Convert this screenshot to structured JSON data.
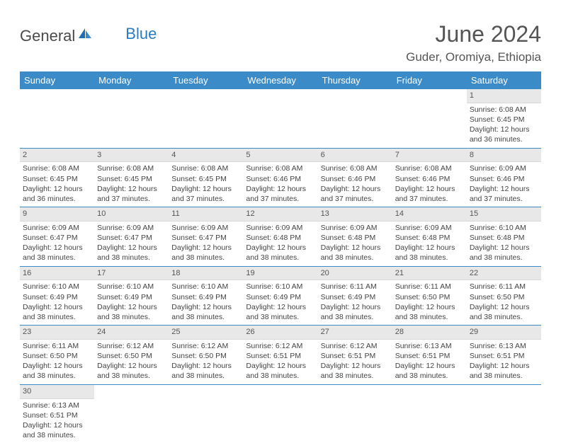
{
  "logo": {
    "text1": "General",
    "text2": "Blue"
  },
  "title": "June 2024",
  "location": "Guder, Oromiya, Ethiopia",
  "colors": {
    "header_bg": "#3b8bc9",
    "header_text": "#ffffff",
    "day_header_bg": "#e8e8e8",
    "cell_border": "#3b8bc9",
    "title_color": "#555555",
    "logo_gray": "#4a4a4a",
    "logo_blue": "#2b7bbf"
  },
  "weekdays": [
    "Sunday",
    "Monday",
    "Tuesday",
    "Wednesday",
    "Thursday",
    "Friday",
    "Saturday"
  ],
  "weeks": [
    [
      {
        "empty": true
      },
      {
        "empty": true
      },
      {
        "empty": true
      },
      {
        "empty": true
      },
      {
        "empty": true
      },
      {
        "empty": true
      },
      {
        "day": "1",
        "sunrise": "Sunrise: 6:08 AM",
        "sunset": "Sunset: 6:45 PM",
        "daylight1": "Daylight: 12 hours",
        "daylight2": "and 36 minutes."
      }
    ],
    [
      {
        "day": "2",
        "sunrise": "Sunrise: 6:08 AM",
        "sunset": "Sunset: 6:45 PM",
        "daylight1": "Daylight: 12 hours",
        "daylight2": "and 36 minutes."
      },
      {
        "day": "3",
        "sunrise": "Sunrise: 6:08 AM",
        "sunset": "Sunset: 6:45 PM",
        "daylight1": "Daylight: 12 hours",
        "daylight2": "and 37 minutes."
      },
      {
        "day": "4",
        "sunrise": "Sunrise: 6:08 AM",
        "sunset": "Sunset: 6:45 PM",
        "daylight1": "Daylight: 12 hours",
        "daylight2": "and 37 minutes."
      },
      {
        "day": "5",
        "sunrise": "Sunrise: 6:08 AM",
        "sunset": "Sunset: 6:46 PM",
        "daylight1": "Daylight: 12 hours",
        "daylight2": "and 37 minutes."
      },
      {
        "day": "6",
        "sunrise": "Sunrise: 6:08 AM",
        "sunset": "Sunset: 6:46 PM",
        "daylight1": "Daylight: 12 hours",
        "daylight2": "and 37 minutes."
      },
      {
        "day": "7",
        "sunrise": "Sunrise: 6:08 AM",
        "sunset": "Sunset: 6:46 PM",
        "daylight1": "Daylight: 12 hours",
        "daylight2": "and 37 minutes."
      },
      {
        "day": "8",
        "sunrise": "Sunrise: 6:09 AM",
        "sunset": "Sunset: 6:46 PM",
        "daylight1": "Daylight: 12 hours",
        "daylight2": "and 37 minutes."
      }
    ],
    [
      {
        "day": "9",
        "sunrise": "Sunrise: 6:09 AM",
        "sunset": "Sunset: 6:47 PM",
        "daylight1": "Daylight: 12 hours",
        "daylight2": "and 38 minutes."
      },
      {
        "day": "10",
        "sunrise": "Sunrise: 6:09 AM",
        "sunset": "Sunset: 6:47 PM",
        "daylight1": "Daylight: 12 hours",
        "daylight2": "and 38 minutes."
      },
      {
        "day": "11",
        "sunrise": "Sunrise: 6:09 AM",
        "sunset": "Sunset: 6:47 PM",
        "daylight1": "Daylight: 12 hours",
        "daylight2": "and 38 minutes."
      },
      {
        "day": "12",
        "sunrise": "Sunrise: 6:09 AM",
        "sunset": "Sunset: 6:48 PM",
        "daylight1": "Daylight: 12 hours",
        "daylight2": "and 38 minutes."
      },
      {
        "day": "13",
        "sunrise": "Sunrise: 6:09 AM",
        "sunset": "Sunset: 6:48 PM",
        "daylight1": "Daylight: 12 hours",
        "daylight2": "and 38 minutes."
      },
      {
        "day": "14",
        "sunrise": "Sunrise: 6:09 AM",
        "sunset": "Sunset: 6:48 PM",
        "daylight1": "Daylight: 12 hours",
        "daylight2": "and 38 minutes."
      },
      {
        "day": "15",
        "sunrise": "Sunrise: 6:10 AM",
        "sunset": "Sunset: 6:48 PM",
        "daylight1": "Daylight: 12 hours",
        "daylight2": "and 38 minutes."
      }
    ],
    [
      {
        "day": "16",
        "sunrise": "Sunrise: 6:10 AM",
        "sunset": "Sunset: 6:49 PM",
        "daylight1": "Daylight: 12 hours",
        "daylight2": "and 38 minutes."
      },
      {
        "day": "17",
        "sunrise": "Sunrise: 6:10 AM",
        "sunset": "Sunset: 6:49 PM",
        "daylight1": "Daylight: 12 hours",
        "daylight2": "and 38 minutes."
      },
      {
        "day": "18",
        "sunrise": "Sunrise: 6:10 AM",
        "sunset": "Sunset: 6:49 PM",
        "daylight1": "Daylight: 12 hours",
        "daylight2": "and 38 minutes."
      },
      {
        "day": "19",
        "sunrise": "Sunrise: 6:10 AM",
        "sunset": "Sunset: 6:49 PM",
        "daylight1": "Daylight: 12 hours",
        "daylight2": "and 38 minutes."
      },
      {
        "day": "20",
        "sunrise": "Sunrise: 6:11 AM",
        "sunset": "Sunset: 6:49 PM",
        "daylight1": "Daylight: 12 hours",
        "daylight2": "and 38 minutes."
      },
      {
        "day": "21",
        "sunrise": "Sunrise: 6:11 AM",
        "sunset": "Sunset: 6:50 PM",
        "daylight1": "Daylight: 12 hours",
        "daylight2": "and 38 minutes."
      },
      {
        "day": "22",
        "sunrise": "Sunrise: 6:11 AM",
        "sunset": "Sunset: 6:50 PM",
        "daylight1": "Daylight: 12 hours",
        "daylight2": "and 38 minutes."
      }
    ],
    [
      {
        "day": "23",
        "sunrise": "Sunrise: 6:11 AM",
        "sunset": "Sunset: 6:50 PM",
        "daylight1": "Daylight: 12 hours",
        "daylight2": "and 38 minutes."
      },
      {
        "day": "24",
        "sunrise": "Sunrise: 6:12 AM",
        "sunset": "Sunset: 6:50 PM",
        "daylight1": "Daylight: 12 hours",
        "daylight2": "and 38 minutes."
      },
      {
        "day": "25",
        "sunrise": "Sunrise: 6:12 AM",
        "sunset": "Sunset: 6:50 PM",
        "daylight1": "Daylight: 12 hours",
        "daylight2": "and 38 minutes."
      },
      {
        "day": "26",
        "sunrise": "Sunrise: 6:12 AM",
        "sunset": "Sunset: 6:51 PM",
        "daylight1": "Daylight: 12 hours",
        "daylight2": "and 38 minutes."
      },
      {
        "day": "27",
        "sunrise": "Sunrise: 6:12 AM",
        "sunset": "Sunset: 6:51 PM",
        "daylight1": "Daylight: 12 hours",
        "daylight2": "and 38 minutes."
      },
      {
        "day": "28",
        "sunrise": "Sunrise: 6:13 AM",
        "sunset": "Sunset: 6:51 PM",
        "daylight1": "Daylight: 12 hours",
        "daylight2": "and 38 minutes."
      },
      {
        "day": "29",
        "sunrise": "Sunrise: 6:13 AM",
        "sunset": "Sunset: 6:51 PM",
        "daylight1": "Daylight: 12 hours",
        "daylight2": "and 38 minutes."
      }
    ],
    [
      {
        "day": "30",
        "sunrise": "Sunrise: 6:13 AM",
        "sunset": "Sunset: 6:51 PM",
        "daylight1": "Daylight: 12 hours",
        "daylight2": "and 38 minutes."
      },
      {
        "empty": true
      },
      {
        "empty": true
      },
      {
        "empty": true
      },
      {
        "empty": true
      },
      {
        "empty": true
      },
      {
        "empty": true
      }
    ]
  ]
}
